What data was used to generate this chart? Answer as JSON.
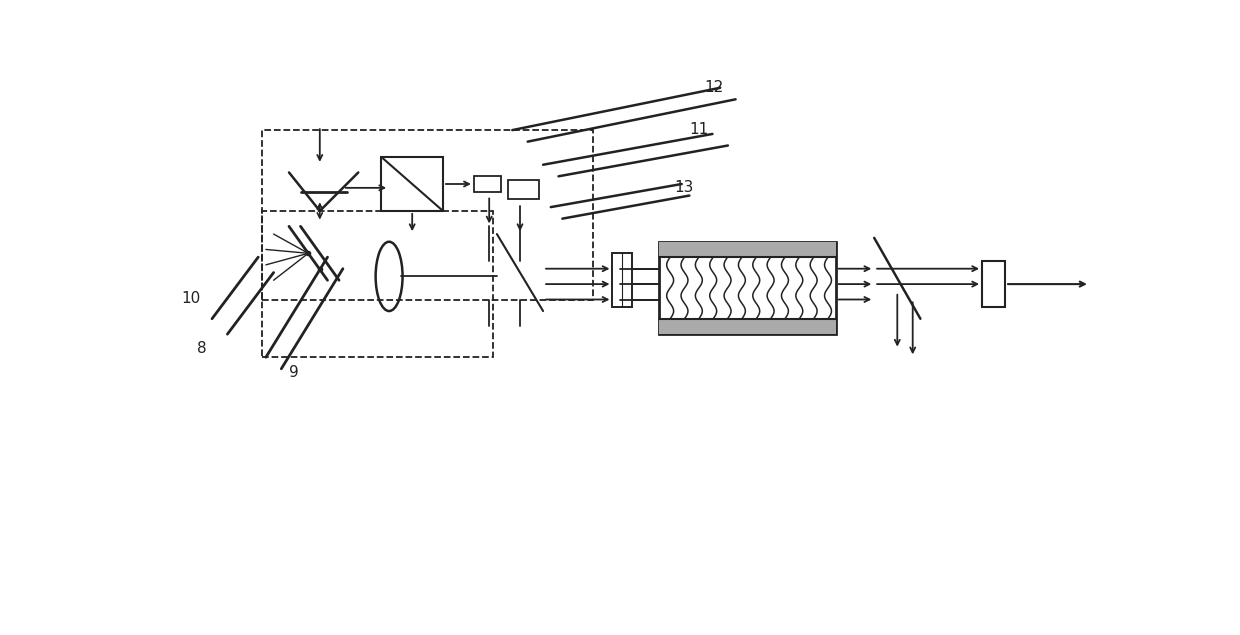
{
  "bg_color": "#ffffff",
  "line_color": "#222222",
  "figsize": [
    12.4,
    6.35
  ],
  "dpi": 100
}
